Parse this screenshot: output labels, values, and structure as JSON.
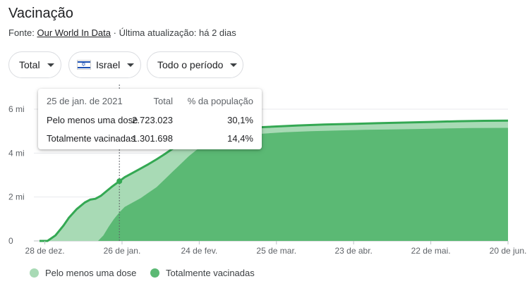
{
  "header": {
    "title": "Vacinação",
    "source_prefix": "Fonte:",
    "source_link": "Our World In Data",
    "updated": "· Última atualização: há 2 dias"
  },
  "filters": {
    "metric": "Total",
    "country": "Israel",
    "period": "Todo o período"
  },
  "tooltip": {
    "date": "25 de jan. de 2021",
    "col_total": "Total",
    "col_pct": "% da população",
    "rows": [
      {
        "label": "Pelo menos uma dose",
        "total": "2.723.023",
        "pct": "30,1%"
      },
      {
        "label": "Totalmente vacinadas",
        "total": "1.301.698",
        "pct": "14,4%"
      }
    ]
  },
  "colors": {
    "line": "#34a853",
    "light_area": "#a8dab5",
    "dark_area": "#5bb974",
    "grid": "#e8eaed"
  },
  "chart_data": {
    "type": "area",
    "y_ticks": [
      "0",
      "2 mi",
      "4 mi",
      "6 mi"
    ],
    "y_tick_values": [
      0,
      2,
      4,
      6
    ],
    "y_unit": "milhões",
    "ylim": [
      0,
      6
    ],
    "x_ticks": [
      "28 de dez.",
      "26 de jan.",
      "24 de fev.",
      "25 de mar.",
      "23 de abr.",
      "22 de mai.",
      "20 de jun."
    ],
    "x_tick_days": [
      0,
      29,
      58,
      87,
      116,
      145,
      174
    ],
    "x_domain_days": [
      -2,
      174
    ],
    "x_day0": "28 de dez.",
    "grid": true,
    "legend_position": "bottom",
    "highlight_day": 28,
    "series": [
      {
        "name": "Pelo menos uma dose",
        "color": "#a8dab5",
        "points": [
          [
            -2,
            0
          ],
          [
            1,
            0
          ],
          [
            4,
            0.25
          ],
          [
            7,
            0.7
          ],
          [
            9,
            1.05
          ],
          [
            12,
            1.45
          ],
          [
            15,
            1.75
          ],
          [
            17,
            1.88
          ],
          [
            19,
            1.92
          ],
          [
            21,
            2.05
          ],
          [
            23,
            2.25
          ],
          [
            25,
            2.45
          ],
          [
            28,
            2.72
          ],
          [
            30,
            2.9
          ],
          [
            33,
            3.1
          ],
          [
            36,
            3.3
          ],
          [
            39,
            3.5
          ],
          [
            42,
            3.72
          ],
          [
            45,
            3.95
          ],
          [
            48,
            4.2
          ],
          [
            51,
            4.45
          ],
          [
            54,
            4.65
          ],
          [
            57,
            4.8
          ],
          [
            60,
            4.9
          ],
          [
            65,
            5.0
          ],
          [
            70,
            5.07
          ],
          [
            75,
            5.12
          ],
          [
            80,
            5.17
          ],
          [
            85,
            5.2
          ],
          [
            95,
            5.26
          ],
          [
            105,
            5.3
          ],
          [
            115,
            5.33
          ],
          [
            125,
            5.36
          ],
          [
            135,
            5.39
          ],
          [
            145,
            5.42
          ],
          [
            155,
            5.45
          ],
          [
            165,
            5.47
          ],
          [
            174,
            5.48
          ]
        ]
      },
      {
        "name": "Totalmente vacinadas",
        "color": "#5bb974",
        "points": [
          [
            -2,
            0
          ],
          [
            20,
            0
          ],
          [
            22,
            0.25
          ],
          [
            24,
            0.65
          ],
          [
            26,
            1.0
          ],
          [
            28,
            1.3
          ],
          [
            30,
            1.55
          ],
          [
            33,
            1.75
          ],
          [
            36,
            1.95
          ],
          [
            39,
            2.2
          ],
          [
            42,
            2.45
          ],
          [
            45,
            2.8
          ],
          [
            48,
            3.15
          ],
          [
            51,
            3.5
          ],
          [
            54,
            3.85
          ],
          [
            57,
            4.15
          ],
          [
            60,
            4.35
          ],
          [
            63,
            4.5
          ],
          [
            66,
            4.6
          ],
          [
            70,
            4.72
          ],
          [
            75,
            4.8
          ],
          [
            80,
            4.87
          ],
          [
            90,
            4.95
          ],
          [
            100,
            5.0
          ],
          [
            110,
            5.03
          ],
          [
            120,
            5.06
          ],
          [
            130,
            5.08
          ],
          [
            140,
            5.1
          ],
          [
            150,
            5.12
          ],
          [
            160,
            5.14
          ],
          [
            174,
            5.15
          ]
        ]
      }
    ]
  },
  "legend": {
    "items": [
      {
        "label": "Pelo menos uma dose"
      },
      {
        "label": "Totalmente vacinadas"
      }
    ]
  }
}
